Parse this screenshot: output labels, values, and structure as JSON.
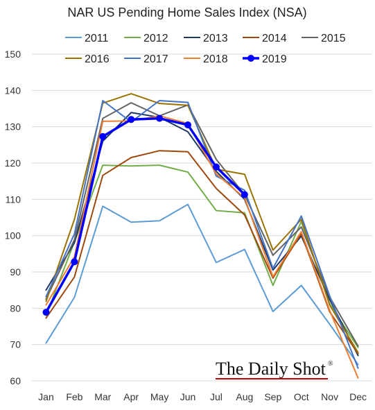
{
  "chart_data": {
    "type": "line",
    "title": "NAR US Pending Home Sales Index (NSA)",
    "categories": [
      "Jan",
      "Feb",
      "Mar",
      "Apr",
      "May",
      "Jun",
      "Jul",
      "Aug",
      "Sep",
      "Oct",
      "Nov",
      "Dec"
    ],
    "ylim": [
      60,
      150
    ],
    "yticks": [
      60,
      70,
      80,
      90,
      100,
      110,
      120,
      130,
      140,
      150
    ],
    "grid": true,
    "legend_position": "top",
    "series": [
      {
        "name": "2011",
        "color": "#5b9bd5",
        "values": [
          70.4,
          83.0,
          108.1,
          103.7,
          104.1,
          108.6,
          92.6,
          96.2,
          79.1,
          86.3,
          75.6,
          64.5
        ]
      },
      {
        "name": "2012",
        "color": "#70ad47",
        "values": [
          78.0,
          98.3,
          119.4,
          119.2,
          119.4,
          117.5,
          106.9,
          106.3,
          86.3,
          103.9,
          81.2,
          69.2
        ]
      },
      {
        "name": "2013",
        "color": "#1f3864",
        "values": [
          85.0,
          98.0,
          126.0,
          133.9,
          132.6,
          128.6,
          117.7,
          110.0,
          90.5,
          99.9,
          82.4,
          67.0
        ]
      },
      {
        "name": "2014",
        "color": "#9e480e",
        "values": [
          77.3,
          88.6,
          116.6,
          121.5,
          123.4,
          123.1,
          113.0,
          105.7,
          88.3,
          100.6,
          79.0,
          67.5
        ]
      },
      {
        "name": "2015",
        "color": "#636363",
        "values": [
          82.5,
          98.9,
          132.3,
          136.6,
          133.0,
          136.0,
          121.0,
          111.3,
          94.6,
          102.4,
          83.1,
          69.6
        ]
      },
      {
        "name": "2016",
        "color": "#997300",
        "values": [
          81.9,
          104.5,
          136.5,
          139.1,
          136.4,
          135.9,
          118.3,
          116.9,
          96.0,
          104.5,
          80.9,
          67.8
        ]
      },
      {
        "name": "2017",
        "color": "#4472c4",
        "values": [
          83.2,
          100.5,
          137.2,
          131.3,
          137.2,
          136.7,
          116.4,
          112.5,
          91.0,
          105.4,
          83.4,
          63.5
        ]
      },
      {
        "name": "2018",
        "color": "#ed7d31",
        "values": [
          80.9,
          94.2,
          131.5,
          131.6,
          133.0,
          130.9,
          117.0,
          110.4,
          88.7,
          101.1,
          79.4,
          60.8
        ]
      },
      {
        "name": "2019",
        "color": "#0000ff",
        "values": [
          78.9,
          92.8,
          127.3,
          132.0,
          132.3,
          130.5,
          118.9,
          111.3,
          null,
          null,
          null,
          null
        ],
        "markers": true
      }
    ]
  },
  "brand": {
    "text": "The Daily Shot",
    "mark": "®"
  }
}
